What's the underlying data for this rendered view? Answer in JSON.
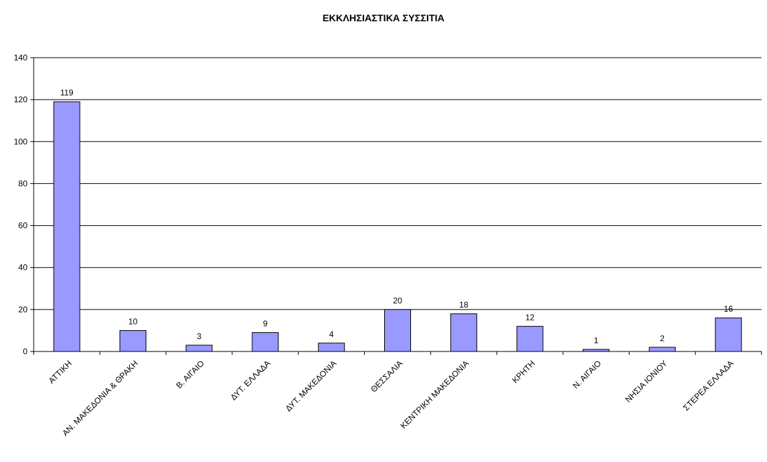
{
  "chart_data": {
    "type": "bar",
    "title": "ΕΚΚΛΗΣΙΑΣΤΙΚΑ ΣΥΣΣΙΤΙΑ",
    "xlabel": "",
    "ylabel": "",
    "categories": [
      "ΑΤΤΙΚΗ",
      "ΑΝ. ΜΑΚΕΔΟΝΙΑ & ΘΡΑΚΗ",
      "Β. ΑΙΓΑΙΟ",
      "ΔΥΤ. ΕΛΛΑΔΑ",
      "ΔΥΤ. ΜΑΚΕΔΟΝΙΑ",
      "ΘΕΣΣΑΛΙΑ",
      "ΚΕΝΤΡΙΚΗ ΜΑΚΕΔΟΝΙΑ",
      "ΚΡΗΤΗ",
      "Ν. ΑΙΓΑΙΟ",
      "ΝΗΣΙΑ ΙΟΝΙΟΥ",
      "ΣΤΕΡΕΑ ΕΛΛΑΔΑ"
    ],
    "values": [
      119,
      10,
      3,
      9,
      4,
      20,
      18,
      12,
      1,
      2,
      16
    ],
    "data_labels": [
      "119",
      "10",
      "3",
      "9",
      "4",
      "20",
      "18",
      "12",
      "1",
      "2",
      "16"
    ],
    "ylim": [
      0,
      140
    ],
    "yticks": [
      0,
      20,
      40,
      60,
      80,
      100,
      120,
      140
    ],
    "ytick_labels": [
      "0",
      "20",
      "40",
      "60",
      "80",
      "100",
      "120",
      "140"
    ],
    "grid": true,
    "legend": "none",
    "colors": {
      "bar_fill": "#9999ff",
      "bar_stroke": "#000000",
      "grid": "#000000",
      "axis": "#000000"
    }
  }
}
